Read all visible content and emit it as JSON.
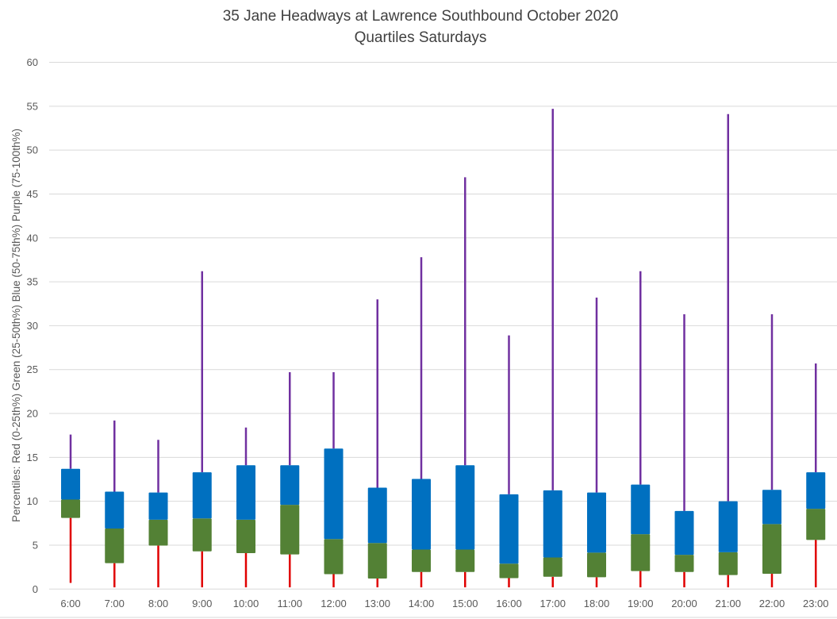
{
  "chart_data": {
    "type": "boxplot",
    "title": "35 Jane Headways at Lawrence Southbound October 2020",
    "subtitle": "Quartiles Saturdays",
    "xlabel": "",
    "ylabel": "Percentiles:  Red (0-25th%)  Green (25-50th%)  Blue (50-75th%)  Purple (75-100th%)",
    "ylim": [
      0,
      60
    ],
    "yticks": [
      0,
      5,
      10,
      15,
      20,
      25,
      30,
      35,
      40,
      45,
      50,
      55,
      60
    ],
    "grid": true,
    "legend": "none",
    "colors": {
      "min_to_q1": "#e00000",
      "q1_to_median": "#538135",
      "median_to_q3": "#0070c0",
      "q3_to_max": "#7030a0"
    },
    "categories": [
      "6:00",
      "7:00",
      "8:00",
      "9:00",
      "10:00",
      "11:00",
      "12:00",
      "13:00",
      "14:00",
      "15:00",
      "16:00",
      "17:00",
      "18:00",
      "19:00",
      "20:00",
      "21:00",
      "22:00",
      "23:00"
    ],
    "series": [
      {
        "name": "min",
        "values": [
          0.7,
          0.2,
          0.2,
          0.2,
          0.2,
          0.2,
          0.2,
          0.2,
          0.2,
          0.2,
          0.2,
          0.2,
          0.2,
          0.2,
          0.2,
          0.2,
          0.2,
          0.2
        ]
      },
      {
        "name": "q1",
        "values": [
          8.1,
          2.95,
          4.95,
          4.3,
          4.1,
          3.95,
          1.7,
          1.2,
          1.95,
          1.95,
          1.25,
          1.4,
          1.35,
          2.05,
          1.95,
          1.6,
          1.75,
          5.6
        ]
      },
      {
        "name": "median",
        "values": [
          10.2,
          6.9,
          7.9,
          8.05,
          7.9,
          9.6,
          5.7,
          5.25,
          4.5,
          4.5,
          2.9,
          3.6,
          4.15,
          6.25,
          3.9,
          4.2,
          7.4,
          9.15
        ]
      },
      {
        "name": "q3",
        "values": [
          13.7,
          11.1,
          11.0,
          13.3,
          14.1,
          14.1,
          16.0,
          11.55,
          12.55,
          14.1,
          10.8,
          11.25,
          11.0,
          11.9,
          8.9,
          10.0,
          11.3,
          13.3
        ]
      },
      {
        "name": "max",
        "values": [
          17.6,
          19.2,
          17.0,
          36.2,
          18.4,
          24.7,
          24.7,
          33.0,
          37.8,
          46.9,
          28.9,
          54.7,
          33.2,
          36.2,
          31.3,
          54.1,
          31.3,
          25.7
        ]
      }
    ]
  }
}
